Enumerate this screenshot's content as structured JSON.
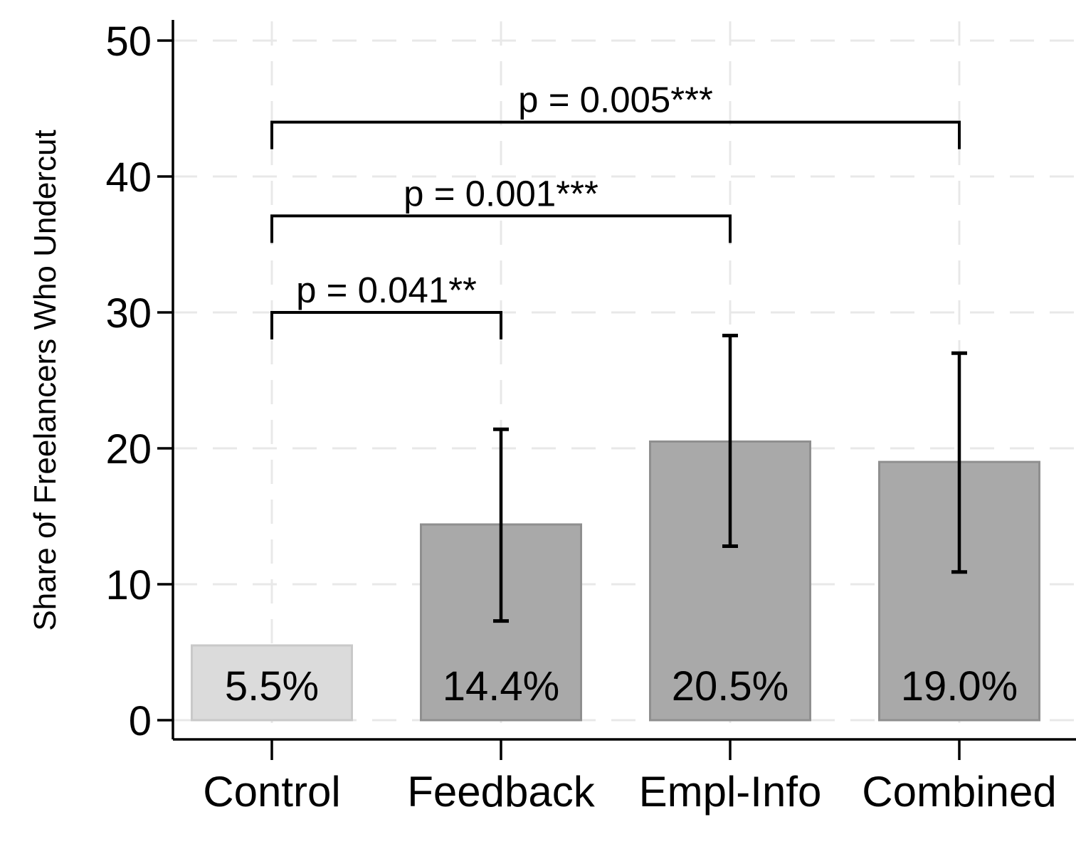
{
  "figure": {
    "background": "#ffffff"
  },
  "colors": {
    "axis": "#000000",
    "text": "#000000",
    "grid": "#e8e8e8",
    "control_fill": "#dbdbdb",
    "control_edge": "#c9c9c9",
    "treatment_fill": "#a9a9a9",
    "treatment_edge": "#8f8f8f",
    "error_bar": "#000000",
    "bracket": "#000000"
  },
  "chart_data": {
    "type": "bar",
    "title": "",
    "xlabel": "",
    "ylabel": "Share of Freelancers Who Undercut",
    "ylim": [
      0,
      50
    ],
    "yticks": [
      0,
      10,
      20,
      30,
      40,
      50
    ],
    "ytick_labels": [
      "0",
      "10",
      "20",
      "30",
      "40",
      "50"
    ],
    "grid": true,
    "legend": "none",
    "categories": [
      "Control",
      "Feedback",
      "Empl-Info",
      "Combined"
    ],
    "values": [
      5.5,
      14.4,
      20.5,
      19.0
    ],
    "bar_labels": [
      "5.5%",
      "14.4%",
      "20.5%",
      "19.0%"
    ],
    "bar_styles": [
      "control",
      "treatment",
      "treatment",
      "treatment"
    ],
    "error_bars": [
      null,
      {
        "low": 7.3,
        "high": 21.4
      },
      {
        "low": 12.8,
        "high": 28.3
      },
      {
        "low": 10.9,
        "high": 27.0
      }
    ],
    "significance_brackets": [
      {
        "from": 0,
        "to": 1,
        "label": "p = 0.041**",
        "height": 30.0
      },
      {
        "from": 0,
        "to": 2,
        "label": "p = 0.001***",
        "height": 37.1
      },
      {
        "from": 0,
        "to": 3,
        "label": "p = 0.005***",
        "height": 44.0
      }
    ]
  }
}
